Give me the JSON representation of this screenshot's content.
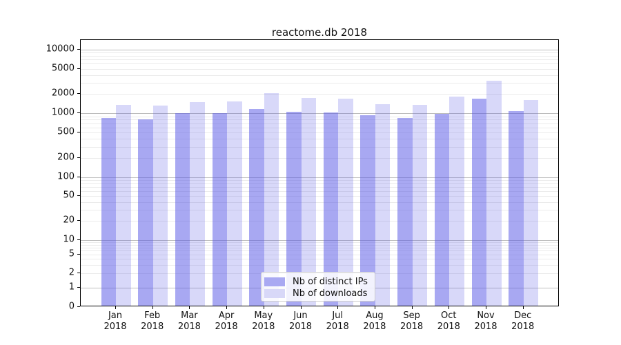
{
  "title": "reactome.db 2018",
  "legend": {
    "items": [
      {
        "label": "Nb of distinct IPs",
        "color": "#a9a9f2",
        "color_rgba": "rgba(85,85,230,0.51)"
      },
      {
        "label": "Nb of downloads",
        "color": "#d8d8f8",
        "color_rgba": "rgba(85,85,230,0.23)"
      }
    ]
  },
  "y_axis": {
    "tick_values": [
      0,
      1,
      2,
      5,
      10,
      20,
      50,
      100,
      200,
      500,
      1000,
      2000,
      5000,
      10000
    ]
  },
  "x_axis": {
    "months": [
      "Jan",
      "Feb",
      "Mar",
      "Apr",
      "May",
      "Jun",
      "Jul",
      "Aug",
      "Sep",
      "Oct",
      "Nov",
      "Dec"
    ],
    "year": "2018"
  },
  "chart_data": {
    "type": "bar",
    "title": "reactome.db 2018",
    "categories": [
      "Jan 2018",
      "Feb 2018",
      "Mar 2018",
      "Apr 2018",
      "May 2018",
      "Jun 2018",
      "Jul 2018",
      "Aug 2018",
      "Sep 2018",
      "Oct 2018",
      "Nov 2018",
      "Dec 2018"
    ],
    "series": [
      {
        "name": "Nb of distinct IPs",
        "color": "#a9a9f2",
        "color_rgba": "rgba(85,85,230,0.51)",
        "values": [
          810,
          760,
          950,
          950,
          1100,
          1015,
          975,
          900,
          800,
          940,
          1610,
          1030
        ]
      },
      {
        "name": "Nb of downloads",
        "color": "#d8d8f8",
        "color_rgba": "rgba(85,85,230,0.23)",
        "values": [
          1290,
          1275,
          1420,
          1470,
          1960,
          1660,
          1630,
          1340,
          1300,
          1750,
          3050,
          1550
        ]
      }
    ],
    "xlabel": "",
    "ylabel": "",
    "yscale": "symlog",
    "ylim": [
      0,
      14000
    ],
    "y_ticks": [
      0,
      1,
      2,
      5,
      10,
      20,
      50,
      100,
      200,
      500,
      1000,
      2000,
      5000,
      10000
    ],
    "grid": true,
    "legend_position": "lower center"
  }
}
